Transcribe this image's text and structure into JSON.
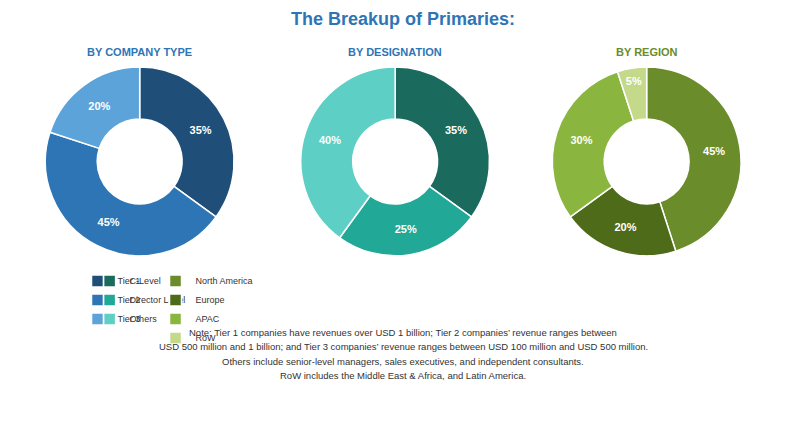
{
  "title": "The Breakup of Primaries:",
  "annotations": [
    "Note: Tier 1 companies have revenues over USD 1 billion; Tier 2 companies’ revenue ranges between",
    "USD 500 million and 1 billion; and Tier 3 companies’ revenue ranges between USD 100 million and USD 500 million.",
    "Others include senior-level managers, sales executives, and independent consultants.",
    "RoW includes the Middle East & Africa, and Latin America."
  ],
  "chart_data": [
    {
      "type": "pie",
      "subtitle": "BY COMPANY TYPE",
      "categories": [
        "Tier 1",
        "Tier 2",
        "Tier 3"
      ],
      "values": [
        35,
        45,
        20
      ],
      "value_labels": [
        "35%",
        "45%",
        "20%"
      ],
      "colors": [
        "#1f4e79",
        "#2e75b6",
        "#5ba3d9"
      ],
      "data_labels": true,
      "legend": "bottom"
    },
    {
      "type": "pie",
      "subtitle": "BY DESIGNATION",
      "categories": [
        "C-Level",
        "Director Level",
        "Others"
      ],
      "values": [
        35,
        25,
        40
      ],
      "value_labels": [
        "35%",
        "25%",
        "40%"
      ],
      "colors": [
        "#1a6b5e",
        "#21a897",
        "#5ecfc4"
      ],
      "data_labels": true,
      "legend": "bottom"
    },
    {
      "type": "pie",
      "subtitle": "BY REGION",
      "categories": [
        "North America",
        "Europe",
        "APAC",
        "RoW"
      ],
      "values": [
        45,
        20,
        30,
        5
      ],
      "value_labels": [
        "45%",
        "20%",
        "30%",
        "5%"
      ],
      "colors": [
        "#6b8c2a",
        "#4e6b1a",
        "#8ab53e",
        "#c5d98a"
      ],
      "data_labels": true,
      "legend": "bottom"
    }
  ]
}
